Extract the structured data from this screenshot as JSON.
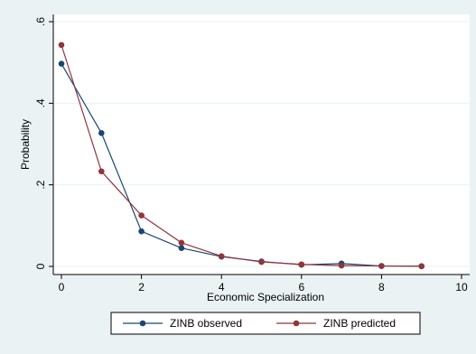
{
  "chart_data": {
    "type": "line",
    "title": "",
    "xlabel": "Economic Specialization",
    "ylabel": "Probability",
    "xlim": [
      0,
      10
    ],
    "ylim": [
      0,
      0.6
    ],
    "x_ticks": [
      0,
      2,
      4,
      6,
      8,
      10
    ],
    "x_tick_labels": [
      "0",
      "2",
      "4",
      "6",
      "8",
      "10"
    ],
    "y_ticks": [
      0,
      0.2,
      0.4,
      0.6
    ],
    "y_tick_labels": [
      "0",
      ".2",
      ".4",
      ".6"
    ],
    "grid": true,
    "legend_position": "bottom",
    "x": [
      0,
      1,
      2,
      3,
      4,
      5,
      6,
      7,
      8,
      9
    ],
    "series": [
      {
        "name": "ZINB observed",
        "color": "#1a476f",
        "values": [
          0.497,
          0.327,
          0.086,
          0.045,
          0.024,
          0.012,
          0.004,
          0.007,
          0.001,
          0.0005
        ]
      },
      {
        "name": "ZINB predicted",
        "color": "#90353b",
        "values": [
          0.543,
          0.233,
          0.125,
          0.058,
          0.025,
          0.011,
          0.005,
          0.002,
          0.001,
          0.0005
        ]
      }
    ]
  }
}
